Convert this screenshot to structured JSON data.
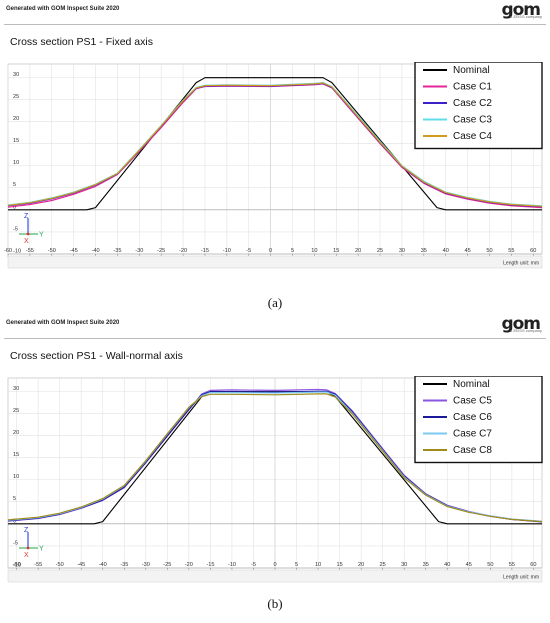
{
  "header": {
    "generated_text": "Generated with GOM Inspect Suite 2020",
    "logo_text": "gom",
    "logo_subtext": "a ZEISS company"
  },
  "axis_labels": {
    "z": "Z",
    "y": "Y",
    "x": "X",
    "length_unit": "Length unit: mm"
  },
  "captions": [
    "(a)",
    "(b)"
  ],
  "colors": {
    "nominal": "#000000",
    "c1": "#e6259a",
    "c2": "#3d20c9",
    "c3": "#5fdde8",
    "c4": "#d29a1e",
    "c5": "#8a55e0",
    "c6": "#1a1a9a",
    "c7": "#7cc8f0",
    "c8": "#a08a1c",
    "grid": "#e2e2e2"
  },
  "chart_data": [
    {
      "type": "line",
      "title": "Cross section PS1 - Fixed axis",
      "xlim": [
        -60,
        62
      ],
      "ylim": [
        -10,
        33
      ],
      "x_ticks": [
        -60,
        -55,
        -50,
        -45,
        -40,
        -35,
        -30,
        -25,
        -20,
        -15,
        -10,
        -5,
        0,
        5,
        10,
        15,
        20,
        25,
        30,
        35,
        40,
        45,
        50,
        55,
        60
      ],
      "y_ticks": [
        -10,
        -5,
        0,
        5,
        10,
        15,
        20,
        25,
        30
      ],
      "grid": true,
      "legend": "top-right",
      "series": [
        {
          "name": "Nominal",
          "color": "nominal",
          "points": [
            [
              -60,
              0
            ],
            [
              -42,
              0
            ],
            [
              -40,
              0.5
            ],
            [
              -17,
              28.8
            ],
            [
              -15,
              29.9
            ],
            [
              12,
              29.9
            ],
            [
              14,
              28.8
            ],
            [
              38,
              0.5
            ],
            [
              40,
              0
            ],
            [
              62,
              0
            ]
          ]
        },
        {
          "name": "Case C1",
          "color": "c1",
          "points": [
            [
              -60,
              0.6
            ],
            [
              -55,
              1.2
            ],
            [
              -50,
              2.1
            ],
            [
              -45,
              3.5
            ],
            [
              -40,
              5.3
            ],
            [
              -35,
              8.0
            ],
            [
              -30,
              13.2
            ],
            [
              -25,
              18.6
            ],
            [
              -20,
              24.3
            ],
            [
              -17,
              27.4
            ],
            [
              -15,
              27.9
            ],
            [
              -10,
              28.0
            ],
            [
              0,
              27.9
            ],
            [
              10,
              28.3
            ],
            [
              12,
              28.5
            ],
            [
              14,
              27.6
            ],
            [
              18,
              23.0
            ],
            [
              25,
              15.0
            ],
            [
              30,
              9.6
            ],
            [
              35,
              6.0
            ],
            [
              40,
              3.6
            ],
            [
              45,
              2.4
            ],
            [
              50,
              1.5
            ],
            [
              55,
              0.9
            ],
            [
              62,
              0.5
            ]
          ]
        },
        {
          "name": "Case C2",
          "color": "c2",
          "points": [
            [
              -60,
              0.9
            ],
            [
              -55,
              1.5
            ],
            [
              -50,
              2.5
            ],
            [
              -45,
              3.8
            ],
            [
              -40,
              5.6
            ],
            [
              -35,
              8.1
            ],
            [
              -30,
              13.4
            ],
            [
              -25,
              18.9
            ],
            [
              -20,
              24.6
            ],
            [
              -17,
              27.5
            ],
            [
              -15,
              28.0
            ],
            [
              -10,
              28.1
            ],
            [
              0,
              28.0
            ],
            [
              10,
              28.4
            ],
            [
              12,
              28.6
            ],
            [
              14,
              27.7
            ],
            [
              18,
              23.2
            ],
            [
              25,
              15.2
            ],
            [
              30,
              9.8
            ],
            [
              35,
              6.2
            ],
            [
              40,
              3.8
            ],
            [
              45,
              2.6
            ],
            [
              50,
              1.7
            ],
            [
              55,
              1.1
            ],
            [
              62,
              0.7
            ]
          ]
        },
        {
          "name": "Case C3",
          "color": "c3",
          "points": [
            [
              -60,
              1.1
            ],
            [
              -55,
              1.7
            ],
            [
              -50,
              2.7
            ],
            [
              -45,
              4.0
            ],
            [
              -40,
              5.8
            ],
            [
              -35,
              8.3
            ],
            [
              -30,
              13.6
            ],
            [
              -25,
              19.1
            ],
            [
              -20,
              24.8
            ],
            [
              -17,
              27.7
            ],
            [
              -15,
              28.2
            ],
            [
              -10,
              28.3
            ],
            [
              0,
              28.2
            ],
            [
              10,
              28.6
            ],
            [
              12,
              28.8
            ],
            [
              14,
              27.9
            ],
            [
              18,
              23.5
            ],
            [
              25,
              15.5
            ],
            [
              30,
              10.0
            ],
            [
              35,
              6.5
            ],
            [
              40,
              4.0
            ],
            [
              45,
              2.8
            ],
            [
              50,
              1.9
            ],
            [
              55,
              1.3
            ],
            [
              62,
              0.9
            ]
          ]
        },
        {
          "name": "Case C4",
          "color": "c4",
          "points": [
            [
              -60,
              1.0
            ],
            [
              -55,
              1.6
            ],
            [
              -50,
              2.6
            ],
            [
              -45,
              3.9
            ],
            [
              -40,
              5.7
            ],
            [
              -35,
              8.2
            ],
            [
              -30,
              13.5
            ],
            [
              -25,
              19.0
            ],
            [
              -20,
              24.7
            ],
            [
              -17,
              27.6
            ],
            [
              -15,
              28.1
            ],
            [
              -10,
              28.2
            ],
            [
              0,
              28.1
            ],
            [
              10,
              28.5
            ],
            [
              12,
              28.7
            ],
            [
              14,
              27.8
            ],
            [
              18,
              23.3
            ],
            [
              25,
              15.3
            ],
            [
              30,
              9.9
            ],
            [
              35,
              6.3
            ],
            [
              40,
              3.9
            ],
            [
              45,
              2.7
            ],
            [
              50,
              1.8
            ],
            [
              55,
              1.2
            ],
            [
              62,
              0.8
            ]
          ]
        }
      ]
    },
    {
      "type": "line",
      "title": "Cross section PS1 - Wall-normal axis",
      "xlim": [
        -62,
        62
      ],
      "ylim": [
        -10,
        33
      ],
      "x_ticks": [
        -60,
        -55,
        -50,
        -45,
        -40,
        -35,
        -30,
        -25,
        -20,
        -15,
        -10,
        -5,
        0,
        5,
        10,
        15,
        20,
        25,
        30,
        35,
        40,
        45,
        50,
        55,
        60
      ],
      "y_ticks": [
        -10,
        -5,
        0,
        5,
        10,
        15,
        20,
        25,
        30
      ],
      "grid": true,
      "legend": "top-right",
      "series": [
        {
          "name": "Nominal",
          "color": "nominal",
          "points": [
            [
              -62,
              0
            ],
            [
              -42,
              0
            ],
            [
              -40,
              0.5
            ],
            [
              -17,
              28.8
            ],
            [
              -15,
              29.9
            ],
            [
              12,
              29.9
            ],
            [
              14,
              28.8
            ],
            [
              38,
              0.5
            ],
            [
              40,
              0
            ],
            [
              62,
              0
            ]
          ]
        },
        {
          "name": "Case C5",
          "color": "c5",
          "points": [
            [
              -62,
              0.6
            ],
            [
              -55,
              1.2
            ],
            [
              -50,
              2.1
            ],
            [
              -45,
              3.5
            ],
            [
              -40,
              5.3
            ],
            [
              -35,
              8.2
            ],
            [
              -30,
              13.8
            ],
            [
              -25,
              19.8
            ],
            [
              -20,
              25.8
            ],
            [
              -17,
              29.4
            ],
            [
              -15,
              30.2
            ],
            [
              -10,
              30.3
            ],
            [
              0,
              30.2
            ],
            [
              10,
              30.4
            ],
            [
              12,
              30.3
            ],
            [
              14,
              29.5
            ],
            [
              18,
              25.5
            ],
            [
              25,
              17.0
            ],
            [
              30,
              11.0
            ],
            [
              35,
              6.8
            ],
            [
              40,
              4.2
            ],
            [
              45,
              2.8
            ],
            [
              50,
              1.8
            ],
            [
              55,
              1.0
            ],
            [
              62,
              0.4
            ]
          ]
        },
        {
          "name": "Case C6",
          "color": "c6",
          "points": [
            [
              -62,
              0.7
            ],
            [
              -55,
              1.3
            ],
            [
              -50,
              2.2
            ],
            [
              -45,
              3.6
            ],
            [
              -40,
              5.4
            ],
            [
              -35,
              8.3
            ],
            [
              -30,
              13.9
            ],
            [
              -25,
              19.9
            ],
            [
              -20,
              25.9
            ],
            [
              -17,
              29.2
            ],
            [
              -15,
              29.9
            ],
            [
              -10,
              29.9
            ],
            [
              0,
              29.8
            ],
            [
              10,
              30.0
            ],
            [
              12,
              30.0
            ],
            [
              14,
              29.3
            ],
            [
              18,
              25.3
            ],
            [
              25,
              16.8
            ],
            [
              30,
              10.8
            ],
            [
              35,
              6.7
            ],
            [
              40,
              4.1
            ],
            [
              45,
              2.7
            ],
            [
              50,
              1.7
            ],
            [
              55,
              1.0
            ],
            [
              62,
              0.5
            ]
          ]
        },
        {
          "name": "Case C7",
          "color": "c7",
          "points": [
            [
              -62,
              0.8
            ],
            [
              -55,
              1.4
            ],
            [
              -50,
              2.3
            ],
            [
              -45,
              3.7
            ],
            [
              -40,
              5.6
            ],
            [
              -35,
              8.6
            ],
            [
              -30,
              14.2
            ],
            [
              -25,
              20.3
            ],
            [
              -20,
              26.3
            ],
            [
              -17,
              29.0
            ],
            [
              -15,
              29.7
            ],
            [
              -10,
              29.7
            ],
            [
              0,
              29.6
            ],
            [
              10,
              29.8
            ],
            [
              12,
              29.8
            ],
            [
              14,
              29.1
            ],
            [
              18,
              25.0
            ],
            [
              25,
              16.6
            ],
            [
              30,
              10.6
            ],
            [
              35,
              6.6
            ],
            [
              40,
              4.0
            ],
            [
              45,
              2.7
            ],
            [
              50,
              1.8
            ],
            [
              55,
              1.1
            ],
            [
              62,
              0.6
            ]
          ]
        },
        {
          "name": "Case C8",
          "color": "c8",
          "points": [
            [
              -62,
              0.9
            ],
            [
              -55,
              1.5
            ],
            [
              -50,
              2.4
            ],
            [
              -45,
              3.8
            ],
            [
              -40,
              5.7
            ],
            [
              -35,
              8.7
            ],
            [
              -30,
              14.3
            ],
            [
              -25,
              20.4
            ],
            [
              -20,
              26.4
            ],
            [
              -17,
              28.8
            ],
            [
              -15,
              29.3
            ],
            [
              -10,
              29.3
            ],
            [
              0,
              29.2
            ],
            [
              10,
              29.4
            ],
            [
              12,
              29.4
            ],
            [
              14,
              28.7
            ],
            [
              18,
              24.8
            ],
            [
              25,
              16.4
            ],
            [
              30,
              10.4
            ],
            [
              35,
              6.5
            ],
            [
              40,
              3.9
            ],
            [
              45,
              2.6
            ],
            [
              50,
              1.7
            ],
            [
              55,
              1.0
            ],
            [
              62,
              0.5
            ]
          ]
        }
      ]
    }
  ]
}
